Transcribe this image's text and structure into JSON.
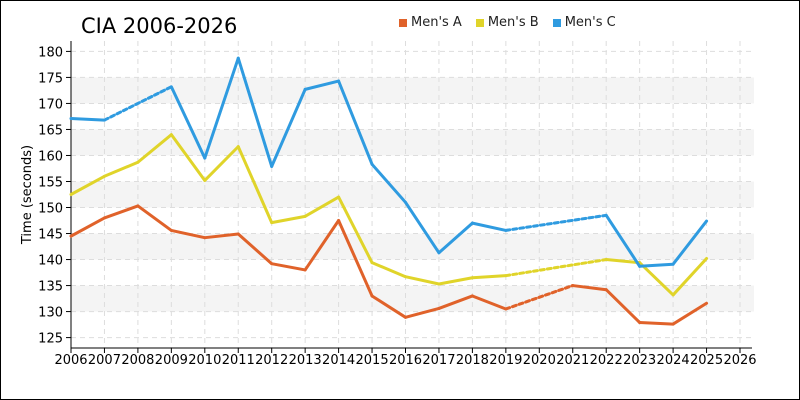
{
  "chart_data": {
    "type": "line",
    "title": "CIA 2006-2026",
    "ylabel": "Time (seconds)",
    "xlabel": "",
    "x": [
      2006,
      2007,
      2008,
      2009,
      2010,
      2011,
      2012,
      2013,
      2014,
      2015,
      2016,
      2017,
      2018,
      2019,
      2020,
      2021,
      2022,
      2023,
      2024,
      2025,
      2026
    ],
    "xlim": [
      2006,
      2026
    ],
    "ylim": [
      123,
      182
    ],
    "yticks": [
      125,
      130,
      135,
      140,
      145,
      150,
      155,
      160,
      165,
      170,
      175,
      180
    ],
    "grid": true,
    "legend_position": "top",
    "series": [
      {
        "name": "Men's A",
        "color": "#e0622a",
        "values": [
          144.5,
          148.0,
          150.3,
          145.6,
          144.2,
          144.9,
          139.2,
          138.0,
          147.5,
          133.0,
          128.9,
          130.6,
          133.0,
          130.5,
          null,
          135.0,
          134.2,
          127.9,
          127.6,
          131.6,
          null
        ]
      },
      {
        "name": "Men's B",
        "color": "#e0d42a",
        "values": [
          152.5,
          156.0,
          158.7,
          164.0,
          155.2,
          161.7,
          147.1,
          148.3,
          152.0,
          139.4,
          136.7,
          135.3,
          136.5,
          136.9,
          null,
          null,
          140.0,
          139.4,
          133.2,
          140.2,
          null
        ]
      },
      {
        "name": "Men's C",
        "color": "#2f9be0",
        "values": [
          167.1,
          166.8,
          null,
          173.2,
          159.5,
          178.7,
          157.9,
          172.7,
          174.3,
          158.3,
          151.0,
          141.3,
          147.0,
          145.6,
          null,
          null,
          148.5,
          138.7,
          139.1,
          147.4,
          null
        ]
      }
    ]
  }
}
